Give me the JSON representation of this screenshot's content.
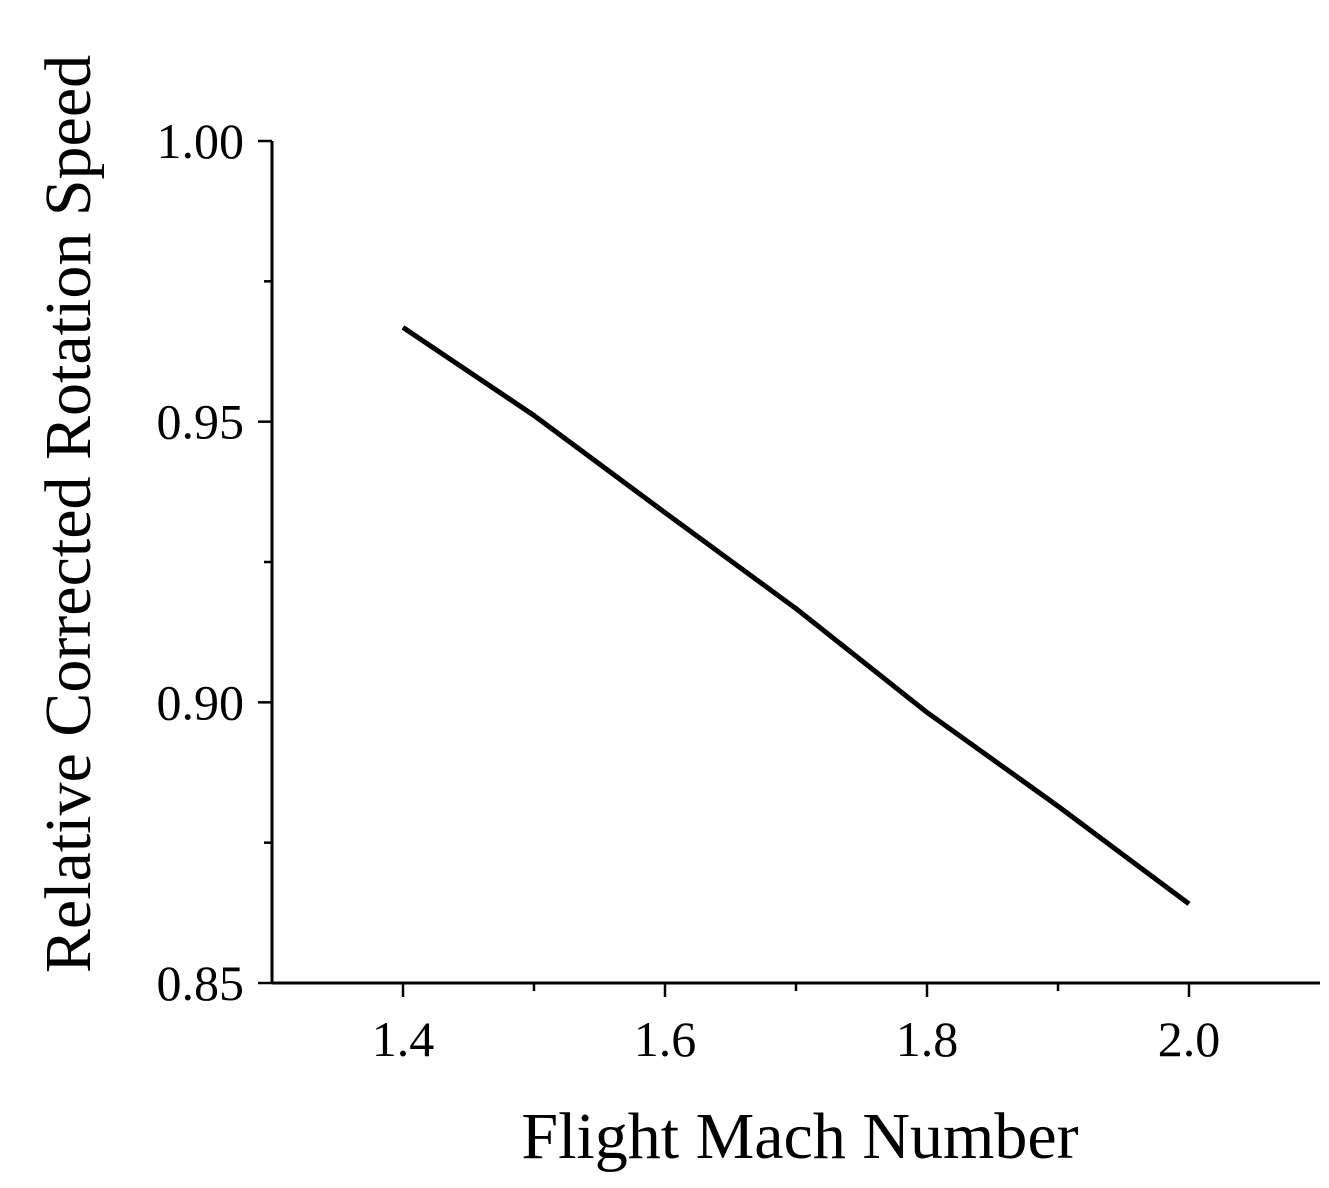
{
  "chart_data": {
    "type": "line",
    "xlabel": "Flight Mach Number",
    "ylabel": "Relative Corrected Rotation Speed",
    "xlim": [
      1.3,
      2.1
    ],
    "ylim": [
      0.85,
      1.0
    ],
    "xticks": [
      1.4,
      1.6,
      1.8,
      2.0
    ],
    "xtick_labels": [
      "1.4",
      "1.6",
      "1.8",
      "2.0"
    ],
    "xminor_ticks": [
      1.5,
      1.7,
      1.9
    ],
    "yticks": [
      0.85,
      0.9,
      0.95,
      1.0
    ],
    "ytick_labels": [
      "0.85",
      "0.90",
      "0.95",
      "1.00"
    ],
    "yminor_ticks": [
      0.875,
      0.925,
      0.975
    ],
    "grid": false,
    "series": [
      {
        "color": "#000000",
        "x": [
          1.4,
          1.5,
          1.6,
          1.7,
          1.8,
          1.9,
          2.0
        ],
        "y": [
          0.9668,
          0.9511,
          0.9338,
          0.9167,
          0.8982,
          0.8815,
          0.8641
        ]
      }
    ]
  }
}
